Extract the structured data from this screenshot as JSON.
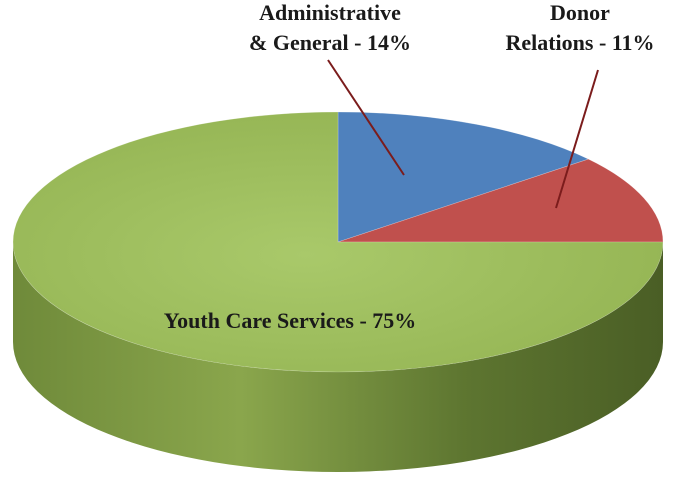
{
  "chart_data": {
    "type": "pie",
    "style": "3d",
    "title": "",
    "slices": [
      {
        "label_lines": [
          "Administrative",
          "& General - 14%"
        ],
        "value": 14,
        "color": "#4f81bd"
      },
      {
        "label_lines": [
          "Donor",
          "Relations - 11%"
        ],
        "value": 11,
        "color": "#c0504d"
      },
      {
        "label_lines": [
          "Youth Care Services - 75%"
        ],
        "value": 75,
        "color": "#9bbb59"
      }
    ],
    "legend": "none",
    "leader_line_color": "#7b1c1c"
  }
}
